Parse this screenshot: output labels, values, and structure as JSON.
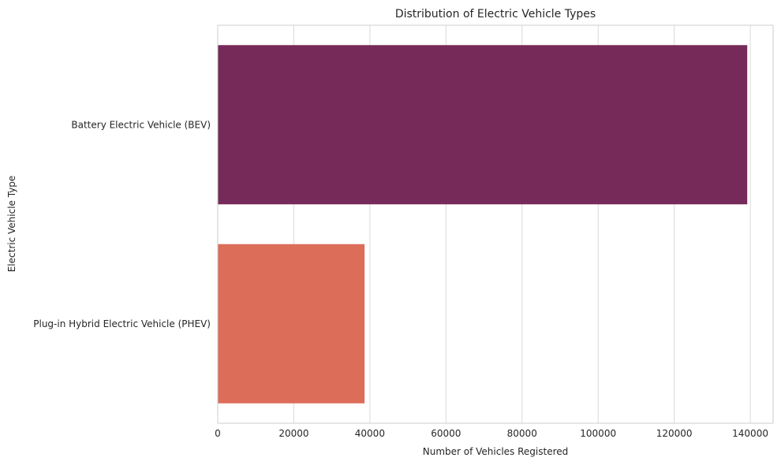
{
  "chart_data": {
    "type": "bar",
    "orientation": "horizontal",
    "title": "Distribution of Electric Vehicle Types",
    "xlabel": "Number of Vehicles Registered",
    "ylabel": "Electric Vehicle Type",
    "categories": [
      "Battery Electric Vehicle (BEV)",
      "Plug-in Hybrid Electric Vehicle (PHEV)"
    ],
    "values": [
      139200,
      38600
    ],
    "colors": [
      "#762a59",
      "#dc6d59"
    ],
    "xlim": [
      0,
      146000
    ],
    "xticks": [
      0,
      20000,
      40000,
      60000,
      80000,
      100000,
      120000,
      140000
    ],
    "grid": "vertical",
    "legend": "none"
  }
}
